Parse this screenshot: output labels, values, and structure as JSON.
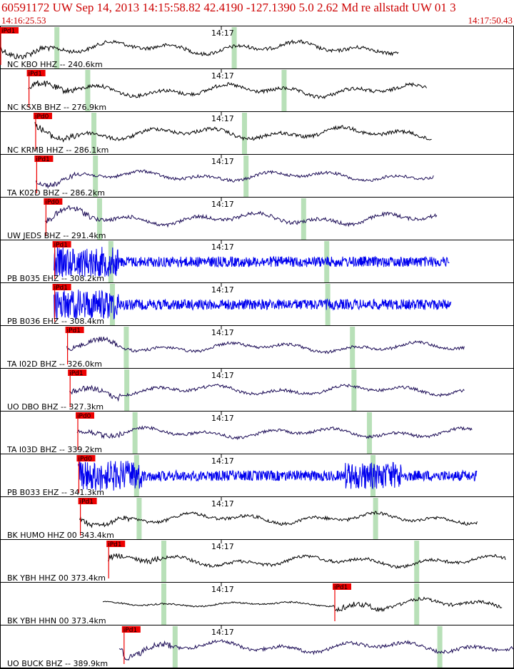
{
  "header": {
    "title": "60591172 UW Sep 14, 2013 14:15:58.82   42.4190 -127.1390  5.0 2.62 Md re allstadt UW 01   3",
    "time_start": "14:16:25.53",
    "time_end": "14:17:50.43"
  },
  "colors": {
    "title": "#cc0000",
    "pick": "#ee0000",
    "trace_black": "#000000",
    "trace_navy": "#1a0a55",
    "trace_blue": "#0000ee",
    "phase_marker": "#b8e0b8"
  },
  "traces": [
    {
      "label": "NC KBO HHZ -- 240.6km",
      "tick": "14:17",
      "pick": "iPd1",
      "color": "black",
      "start": 0.0,
      "end": 0.775,
      "pick_pos": 0.0,
      "s_pos": 0.11,
      "s2_pos": 0.455,
      "amp": 0.8
    },
    {
      "label": "NC KSXB BHZ -- 276.9km",
      "tick": "14:17",
      "pick": "iPd1",
      "color": "black",
      "start": 0.055,
      "end": 0.83,
      "pick_pos": 0.055,
      "s_pos": 0.17,
      "s2_pos": 0.552,
      "amp": 0.8
    },
    {
      "label": "NC KRMB HHZ -- 286.1km",
      "tick": "14:17",
      "pick": "iPd0",
      "color": "black",
      "start": 0.068,
      "end": 0.84,
      "pick_pos": 0.068,
      "s_pos": 0.182,
      "s2_pos": 0.475,
      "amp": 0.8
    },
    {
      "label": "TA K02D BHZ -- 286.2km",
      "tick": "14:17",
      "pick": "iPd1",
      "color": "navy",
      "start": 0.07,
      "end": 0.845,
      "pick_pos": 0.07,
      "s_pos": 0.185,
      "s2_pos": 0.478,
      "amp": 0.65
    },
    {
      "label": "UW JEDS BHZ -- 291.4km",
      "tick": "14:17",
      "pick": "iPd0",
      "color": "navy",
      "start": 0.088,
      "end": 0.85,
      "pick_pos": 0.088,
      "s_pos": 0.193,
      "s2_pos": 0.59,
      "amp": 0.8
    },
    {
      "label": "PB B035 EHZ -- 308.2km",
      "tick": "14:17",
      "pick": "iPd1",
      "color": "blue",
      "start": 0.105,
      "end": 0.875,
      "pick_pos": 0.105,
      "s_pos": 0.215,
      "s2_pos": 0.635,
      "amp": 0.75
    },
    {
      "label": "PB B036 EHZ -- 308.4km",
      "tick": "14:17",
      "pick": "iPd1",
      "color": "blue",
      "start": 0.105,
      "end": 0.878,
      "pick_pos": 0.105,
      "s_pos": 0.218,
      "s2_pos": 0.637,
      "amp": 0.75
    },
    {
      "label": "TA I02D BHZ -- 326.0km",
      "tick": "14:17",
      "pick": "iPd1",
      "color": "navy",
      "start": 0.13,
      "end": 0.905,
      "pick_pos": 0.13,
      "s_pos": 0.245,
      "s2_pos": 0.685,
      "amp": 0.65
    },
    {
      "label": "UO DBO BHZ -- 327.3km",
      "tick": "14:17",
      "pick": "iPd1",
      "color": "navy",
      "start": 0.135,
      "end": 0.905,
      "pick_pos": 0.135,
      "s_pos": 0.246,
      "s2_pos": 0.688,
      "amp": 0.65
    },
    {
      "label": "TA I03D BHZ -- 339.2km",
      "tick": "14:17",
      "pick": "iPd0",
      "color": "navy",
      "start": 0.15,
      "end": 0.92,
      "pick_pos": 0.15,
      "s_pos": 0.262,
      "s2_pos": 0.718,
      "amp": 0.65
    },
    {
      "label": "PB B033 EHZ -- 341.3km",
      "tick": "14:17",
      "pick": "iPd0",
      "color": "blue",
      "start": 0.152,
      "end": 0.928,
      "pick_pos": 0.152,
      "s_pos": 0.265,
      "s2_pos": 0.725,
      "amp": 0.75
    },
    {
      "label": "BK HUMO HHZ 00 343.4km",
      "tick": "14:17",
      "pick": "iPd1",
      "color": "black",
      "start": 0.155,
      "end": 0.93,
      "pick_pos": 0.155,
      "s_pos": 0.27,
      "s2_pos": 0.73,
      "amp": 0.7
    },
    {
      "label": "BK YBH HHZ 00 373.4km",
      "tick": "14:17",
      "pick": "iPd1",
      "color": "black",
      "start": 0.21,
      "end": 0.985,
      "pick_pos": 0.21,
      "s_pos": 0.318,
      "s2_pos": 0.81,
      "amp": 0.7
    },
    {
      "label": "BK YBH HHN 00 373.4km",
      "tick": "14:17",
      "pick": "iPd1",
      "color": "black",
      "start": 0.2,
      "end": 0.978,
      "pick_pos": 0.65,
      "s_pos": 0.318,
      "s2_pos": 0.81,
      "amp": 0.7
    },
    {
      "label": "UO BUCK BHZ -- 389.9km",
      "tick": "14:17",
      "pick": "iPd1",
      "color": "navy",
      "start": 0.232,
      "end": 1.0,
      "pick_pos": 0.24,
      "s_pos": 0.34,
      "s2_pos": 0.855,
      "amp": 0.75
    }
  ]
}
